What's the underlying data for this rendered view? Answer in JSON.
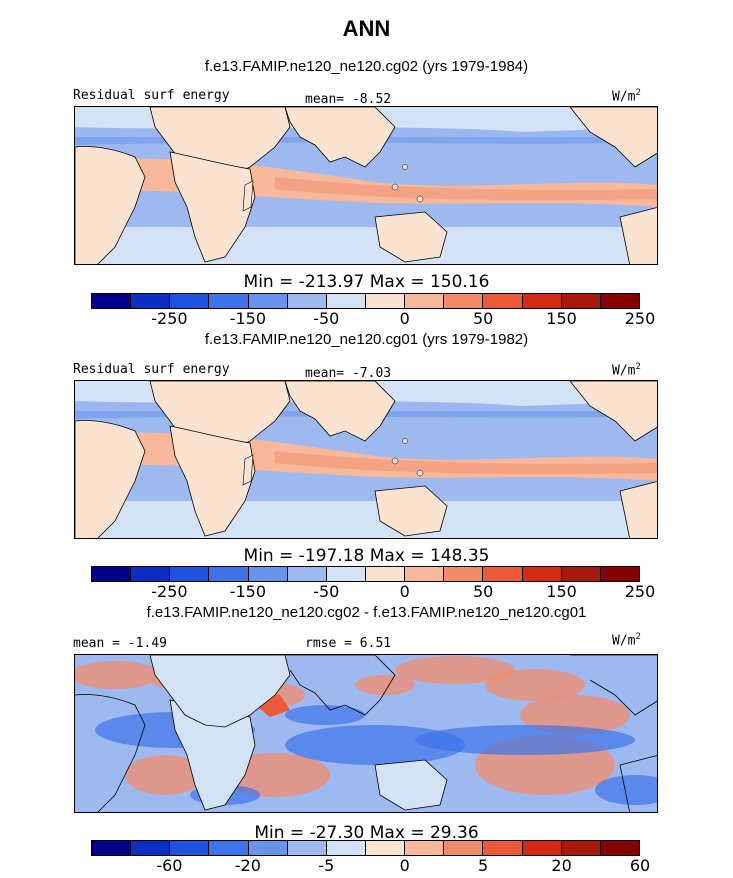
{
  "main_title": "ANN",
  "colors": [
    "#00008b",
    "#0d2fc1",
    "#1f52de",
    "#3d73e8",
    "#6994ec",
    "#9eb9f0",
    "#d4e2f6",
    "#fbe3d2",
    "#f7b89c",
    "#f18c6b",
    "#eb5a39",
    "#d32b14",
    "#a51a0b",
    "#870000"
  ],
  "map_palette": {
    "land": "#fbe3d2",
    "ocean_light": "#d4e2f6",
    "ocean_mid": "#9eb9f0",
    "ocean_deep": "#6994ec",
    "warm_band": "#f7b89c",
    "warm_strong": "#f18c6b"
  },
  "panels": [
    {
      "title": "f.e13.FAMIP.ne120_ne120.cg02 (yrs 1979-1984)",
      "left_label": "Residual surf energy",
      "center_label": "mean=  -8.52",
      "units": "W/m",
      "units_sup": "2",
      "min_max": "Min = -213.97 Max = 150.16",
      "tick_labels": [
        "-250",
        "-150",
        "-50",
        "0",
        "50",
        "150",
        "250"
      ]
    },
    {
      "title": "f.e13.FAMIP.ne120_ne120.cg01 (yrs 1979-1982)",
      "left_label": "Residual surf energy",
      "center_label": "mean=  -7.03",
      "units": "W/m",
      "units_sup": "2",
      "min_max": "Min = -197.18 Max = 148.35",
      "tick_labels": [
        "-250",
        "-150",
        "-50",
        "0",
        "50",
        "150",
        "250"
      ]
    },
    {
      "title": "f.e13.FAMIP.ne120_ne120.cg02 - f.e13.FAMIP.ne120_ne120.cg01",
      "left_label": "mean =  -1.49",
      "center_label": "rmse =   6.51",
      "units": "W/m",
      "units_sup": "2",
      "min_max": "Min = -27.30 Max =  29.36",
      "tick_labels": [
        "-60",
        "-20",
        "-5",
        "0",
        "5",
        "20",
        "60"
      ]
    }
  ]
}
